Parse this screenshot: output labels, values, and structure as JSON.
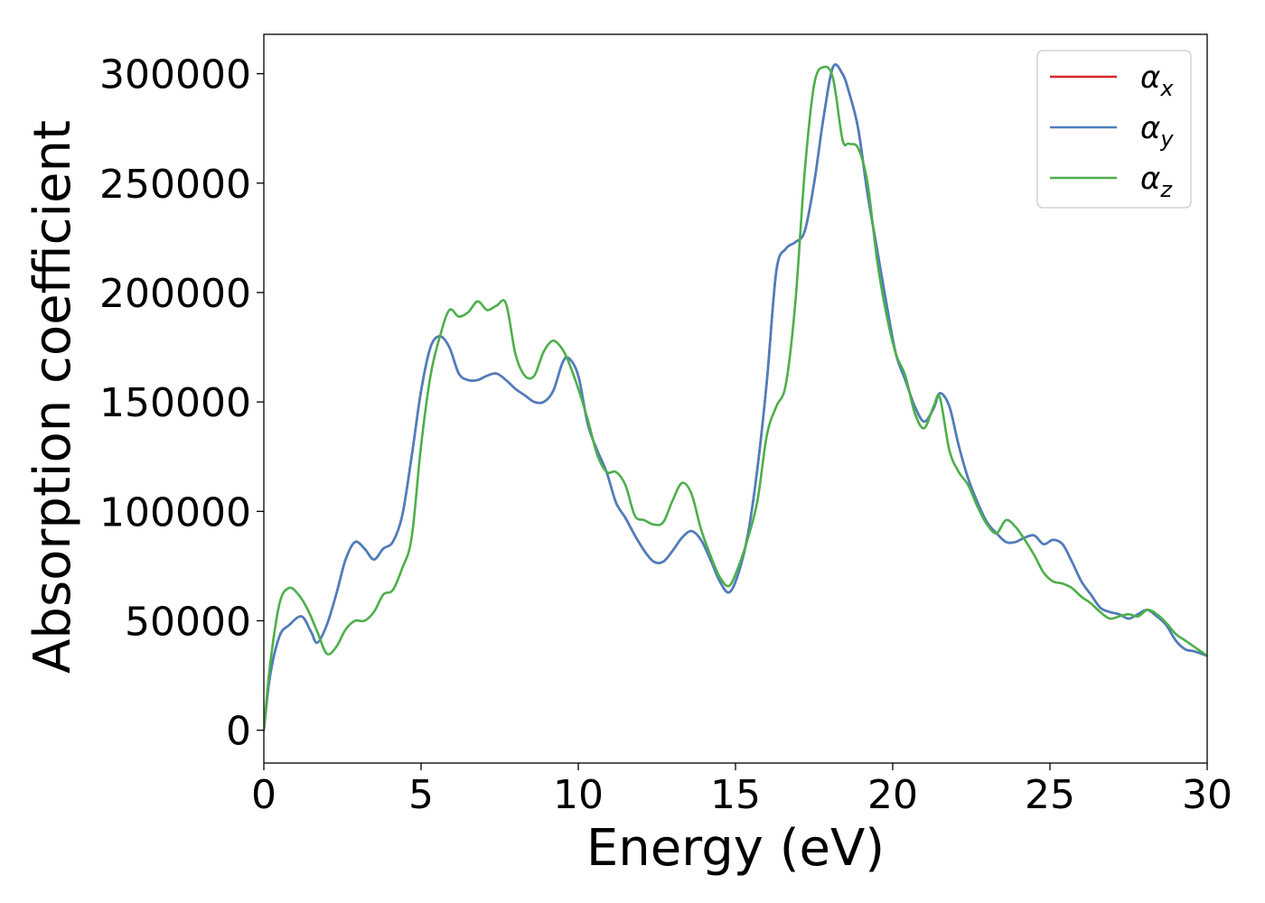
{
  "chart_data": {
    "type": "line",
    "title": "",
    "xlabel": "Energy (eV)",
    "ylabel": "Absorption coefficient",
    "xlim": [
      0,
      30
    ],
    "ylim": [
      -15000,
      318000
    ],
    "xticks": [
      0,
      5,
      10,
      15,
      20,
      25,
      30
    ],
    "yticks": [
      0,
      50000,
      100000,
      150000,
      200000,
      250000,
      300000
    ],
    "grid": false,
    "legend_position": "top-right",
    "series": [
      {
        "name": "α",
        "subscript": "x",
        "color": "#d62728",
        "x": [
          0,
          0.2,
          0.5,
          0.8,
          1.2,
          1.5,
          1.7,
          2.0,
          2.3,
          2.6,
          2.9,
          3.2,
          3.5,
          3.8,
          4.1,
          4.4,
          4.7,
          5.0,
          5.3,
          5.6,
          5.9,
          6.2,
          6.5,
          6.8,
          7.1,
          7.4,
          7.7,
          8.0,
          8.3,
          8.6,
          8.9,
          9.2,
          9.5,
          9.7,
          10.0,
          10.3,
          10.6,
          10.9,
          11.2,
          11.5,
          11.8,
          12.1,
          12.4,
          12.7,
          13.0,
          13.3,
          13.6,
          13.9,
          14.2,
          14.5,
          14.8,
          15.1,
          15.4,
          15.7,
          16.0,
          16.3,
          16.6,
          16.9,
          17.2,
          17.5,
          17.8,
          18.1,
          18.4,
          18.6,
          18.9,
          19.2,
          19.5,
          19.8,
          20.1,
          20.4,
          20.7,
          21.0,
          21.3,
          21.5,
          21.8,
          22.1,
          22.4,
          22.7,
          23.0,
          23.3,
          23.6,
          23.9,
          24.2,
          24.5,
          24.8,
          25.1,
          25.4,
          25.7,
          26.0,
          26.3,
          26.6,
          26.9,
          27.2,
          27.5,
          27.8,
          28.1,
          28.4,
          28.7,
          29.0,
          29.3,
          29.6,
          30.0
        ],
        "y": [
          0,
          25000,
          43000,
          48000,
          52000,
          45000,
          40000,
          48000,
          62000,
          78000,
          86000,
          83000,
          78000,
          83000,
          86000,
          98000,
          125000,
          155000,
          175000,
          180000,
          175000,
          163000,
          160000,
          160000,
          162000,
          163000,
          160000,
          156000,
          153000,
          150000,
          150000,
          155000,
          168000,
          170000,
          162000,
          140000,
          128000,
          118000,
          104000,
          97000,
          89000,
          82000,
          77000,
          77000,
          82000,
          88000,
          91000,
          87000,
          78000,
          68000,
          63000,
          72000,
          90000,
          120000,
          160000,
          210000,
          220000,
          223000,
          228000,
          250000,
          280000,
          303000,
          300000,
          292000,
          275000,
          245000,
          220000,
          195000,
          172000,
          160000,
          148000,
          141000,
          147000,
          154000,
          148000,
          130000,
          115000,
          104000,
          95000,
          90000,
          86000,
          86000,
          88000,
          89000,
          85000,
          87000,
          85000,
          77000,
          68000,
          62000,
          56000,
          54000,
          53000,
          51000,
          53000,
          55000,
          52000,
          48000,
          41000,
          37000,
          36000,
          34000
        ]
      },
      {
        "name": "α",
        "subscript": "y",
        "color": "#4a7fc0",
        "x": [
          0,
          0.2,
          0.5,
          0.8,
          1.2,
          1.5,
          1.7,
          2.0,
          2.3,
          2.6,
          2.9,
          3.2,
          3.5,
          3.8,
          4.1,
          4.4,
          4.7,
          5.0,
          5.3,
          5.6,
          5.9,
          6.2,
          6.5,
          6.8,
          7.1,
          7.4,
          7.7,
          8.0,
          8.3,
          8.6,
          8.9,
          9.2,
          9.5,
          9.7,
          10.0,
          10.3,
          10.6,
          10.9,
          11.2,
          11.5,
          11.8,
          12.1,
          12.4,
          12.7,
          13.0,
          13.3,
          13.6,
          13.9,
          14.2,
          14.5,
          14.8,
          15.1,
          15.4,
          15.7,
          16.0,
          16.3,
          16.6,
          16.9,
          17.2,
          17.5,
          17.8,
          18.1,
          18.4,
          18.6,
          18.9,
          19.2,
          19.5,
          19.8,
          20.1,
          20.4,
          20.7,
          21.0,
          21.3,
          21.5,
          21.8,
          22.1,
          22.4,
          22.7,
          23.0,
          23.3,
          23.6,
          23.9,
          24.2,
          24.5,
          24.8,
          25.1,
          25.4,
          25.7,
          26.0,
          26.3,
          26.6,
          26.9,
          27.2,
          27.5,
          27.8,
          28.1,
          28.4,
          28.7,
          29.0,
          29.3,
          29.6,
          30.0
        ],
        "y": [
          0,
          25000,
          43000,
          48000,
          52000,
          45000,
          40000,
          48000,
          62000,
          78000,
          86000,
          83000,
          78000,
          83000,
          86000,
          98000,
          125000,
          155000,
          175000,
          180000,
          175000,
          163000,
          160000,
          160000,
          162000,
          163000,
          160000,
          156000,
          153000,
          150000,
          150000,
          155000,
          168000,
          170000,
          162000,
          140000,
          128000,
          118000,
          104000,
          97000,
          89000,
          82000,
          77000,
          77000,
          82000,
          88000,
          91000,
          87000,
          78000,
          68000,
          63000,
          72000,
          90000,
          120000,
          160000,
          210000,
          220000,
          223000,
          228000,
          250000,
          280000,
          303000,
          300000,
          292000,
          275000,
          245000,
          220000,
          195000,
          172000,
          160000,
          148000,
          141000,
          147000,
          154000,
          148000,
          130000,
          115000,
          104000,
          95000,
          90000,
          86000,
          86000,
          88000,
          89000,
          85000,
          87000,
          85000,
          77000,
          68000,
          62000,
          56000,
          54000,
          53000,
          51000,
          53000,
          55000,
          52000,
          48000,
          41000,
          37000,
          36000,
          34000
        ]
      },
      {
        "name": "α",
        "subscript": "z",
        "color": "#4daf4a",
        "x": [
          0,
          0.2,
          0.5,
          0.8,
          1.1,
          1.4,
          1.7,
          2.0,
          2.3,
          2.6,
          2.9,
          3.2,
          3.5,
          3.8,
          4.1,
          4.4,
          4.7,
          5.0,
          5.3,
          5.6,
          5.9,
          6.2,
          6.5,
          6.8,
          7.1,
          7.4,
          7.7,
          8.0,
          8.3,
          8.6,
          8.9,
          9.2,
          9.5,
          9.7,
          10.0,
          10.3,
          10.6,
          10.9,
          11.2,
          11.5,
          11.8,
          12.1,
          12.4,
          12.7,
          13.0,
          13.3,
          13.6,
          13.9,
          14.2,
          14.5,
          14.8,
          15.1,
          15.4,
          15.7,
          16.0,
          16.3,
          16.6,
          16.9,
          17.2,
          17.5,
          17.8,
          18.1,
          18.4,
          18.6,
          18.9,
          19.2,
          19.5,
          19.8,
          20.1,
          20.4,
          20.7,
          21.0,
          21.3,
          21.5,
          21.8,
          22.1,
          22.4,
          22.7,
          23.0,
          23.3,
          23.6,
          23.9,
          24.2,
          24.5,
          24.8,
          25.1,
          25.4,
          25.7,
          26.0,
          26.3,
          26.6,
          26.9,
          27.2,
          27.5,
          27.8,
          28.1,
          28.4,
          28.7,
          29.0,
          29.3,
          29.6,
          30.0
        ],
        "y": [
          0,
          30000,
          58000,
          65000,
          62000,
          55000,
          45000,
          35000,
          38000,
          46000,
          50000,
          50000,
          54000,
          62000,
          64000,
          74000,
          88000,
          130000,
          162000,
          180000,
          192000,
          189000,
          191000,
          196000,
          192000,
          194000,
          195000,
          172000,
          162000,
          162000,
          173000,
          178000,
          174000,
          168000,
          156000,
          142000,
          126000,
          118000,
          118000,
          112000,
          98000,
          96000,
          94000,
          95000,
          105000,
          113000,
          108000,
          92000,
          80000,
          70000,
          66000,
          75000,
          88000,
          105000,
          135000,
          148000,
          158000,
          195000,
          255000,
          295000,
          303000,
          298000,
          270000,
          268000,
          266000,
          250000,
          215000,
          190000,
          172000,
          162000,
          145000,
          138000,
          148000,
          152000,
          128000,
          118000,
          112000,
          102000,
          94000,
          90000,
          96000,
          93000,
          87000,
          80000,
          72000,
          68000,
          67000,
          65000,
          61000,
          58000,
          54000,
          51000,
          52000,
          53000,
          52000,
          55000,
          53000,
          49000,
          44000,
          41000,
          38000,
          34000
        ]
      }
    ]
  }
}
